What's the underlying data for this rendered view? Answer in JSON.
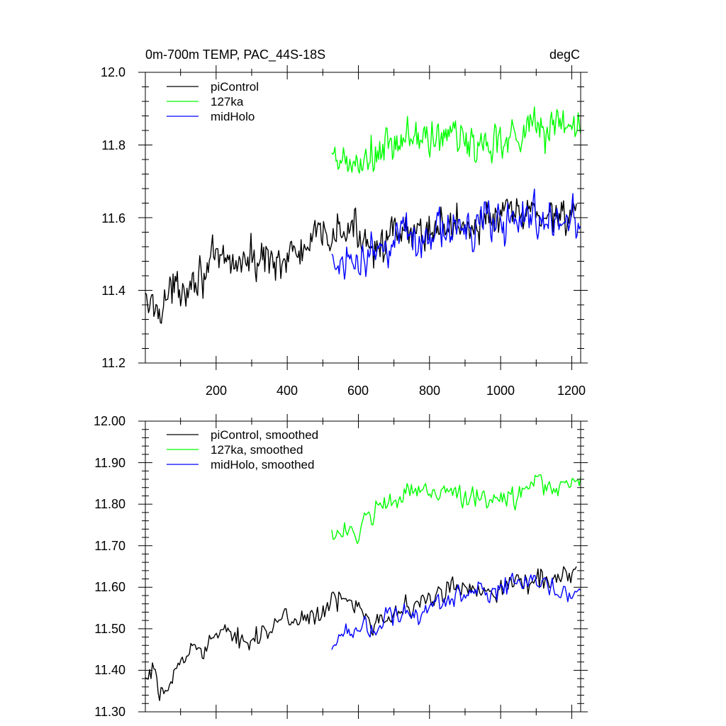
{
  "chart_data": [
    {
      "type": "line",
      "title": "0m-700m TEMP, PAC_44S-18S",
      "units": "degC",
      "xlabel": "",
      "ylabel": "",
      "xlim": [
        1,
        1225
      ],
      "ylim": [
        11.2,
        12.0
      ],
      "x_ticks": [
        200,
        400,
        600,
        800,
        1000,
        1200
      ],
      "x_tick_labels": [
        "200",
        "400",
        "600",
        "800",
        "1000",
        "1200"
      ],
      "y_ticks": [
        11.2,
        11.4,
        11.6,
        11.8,
        12.0
      ],
      "y_tick_labels": [
        "11.2",
        "11.4",
        "11.6",
        "11.8",
        "12.0"
      ],
      "legend_position": "top-left",
      "series": [
        {
          "name": "piControl",
          "color": "#000000",
          "x": [
            1,
            30,
            60,
            100,
            150,
            200,
            250,
            300,
            350,
            400,
            450,
            500,
            550,
            600,
            650,
            700,
            750,
            800,
            850,
            900,
            950,
            1000,
            1050,
            1100,
            1150,
            1200,
            1215
          ],
          "values": [
            11.36,
            11.35,
            11.38,
            11.41,
            11.45,
            11.47,
            11.48,
            11.48,
            11.49,
            11.49,
            11.51,
            11.55,
            11.56,
            11.56,
            11.53,
            11.54,
            11.55,
            11.57,
            11.58,
            11.58,
            11.59,
            11.6,
            11.61,
            11.61,
            11.61,
            11.62,
            11.62
          ],
          "noise": 0.032
        },
        {
          "name": "127ka",
          "color": "#00ff00",
          "x": [
            525,
            550,
            600,
            650,
            700,
            750,
            800,
            850,
            900,
            950,
            1000,
            1050,
            1100,
            1150,
            1200,
            1225
          ],
          "values": [
            11.74,
            11.75,
            11.74,
            11.77,
            11.79,
            11.83,
            11.81,
            11.83,
            11.81,
            11.8,
            11.82,
            11.84,
            11.85,
            11.85,
            11.86,
            11.87
          ],
          "noise": 0.035
        },
        {
          "name": "midHolo",
          "color": "#0000ff",
          "x": [
            525,
            550,
            600,
            650,
            700,
            750,
            800,
            850,
            900,
            950,
            1000,
            1050,
            1100,
            1150,
            1200,
            1225
          ],
          "values": [
            11.46,
            11.49,
            11.5,
            11.51,
            11.53,
            11.54,
            11.55,
            11.56,
            11.58,
            11.59,
            11.59,
            11.6,
            11.6,
            11.59,
            11.58,
            11.59
          ],
          "noise": 0.034
        }
      ]
    },
    {
      "type": "line",
      "title": "",
      "xlabel": "",
      "ylabel": "",
      "xlim": [
        1,
        1225
      ],
      "ylim": [
        11.3,
        12.0
      ],
      "x_ticks": [
        200,
        400,
        600,
        800,
        1000,
        1200
      ],
      "x_tick_labels": [],
      "y_ticks": [
        11.3,
        11.4,
        11.5,
        11.6,
        11.7,
        11.8,
        11.9,
        12.0
      ],
      "y_tick_labels": [
        "11.30",
        "11.40",
        "11.50",
        "11.60",
        "11.70",
        "11.80",
        "11.90",
        "12.00"
      ],
      "legend_position": "top-left",
      "series": [
        {
          "name": "piControl, smoothed",
          "color": "#000000",
          "x": [
            1,
            20,
            40,
            60,
            80,
            100,
            130,
            150,
            200,
            250,
            300,
            350,
            400,
            450,
            500,
            550,
            600,
            650,
            700,
            750,
            800,
            850,
            900,
            950,
            1000,
            1050,
            1100,
            1150,
            1200,
            1215
          ],
          "values": [
            11.36,
            11.4,
            11.33,
            11.36,
            11.38,
            11.42,
            11.45,
            11.46,
            11.48,
            11.48,
            11.48,
            11.5,
            11.52,
            11.53,
            11.54,
            11.57,
            11.56,
            11.52,
            11.54,
            11.55,
            11.57,
            11.59,
            11.6,
            11.6,
            11.6,
            11.61,
            11.62,
            11.62,
            11.64,
            11.63
          ],
          "noise": 0.016
        },
        {
          "name": "127ka, smoothed",
          "color": "#00ff00",
          "x": [
            525,
            560,
            600,
            640,
            660,
            700,
            750,
            800,
            850,
            900,
            950,
            1000,
            1050,
            1100,
            1150,
            1200,
            1225
          ],
          "values": [
            11.74,
            11.74,
            11.73,
            11.76,
            11.8,
            11.8,
            11.83,
            11.83,
            11.84,
            11.82,
            11.8,
            11.81,
            11.83,
            11.85,
            11.84,
            11.86,
            11.88
          ],
          "noise": 0.017
        },
        {
          "name": "midHolo, smoothed",
          "color": "#0000ff",
          "x": [
            525,
            540,
            560,
            600,
            650,
            700,
            750,
            800,
            850,
            900,
            950,
            1000,
            1050,
            1100,
            1150,
            1200,
            1225
          ],
          "values": [
            11.45,
            11.47,
            11.5,
            11.51,
            11.51,
            11.53,
            11.54,
            11.55,
            11.56,
            11.58,
            11.59,
            11.6,
            11.6,
            11.61,
            11.6,
            11.58,
            11.6
          ],
          "noise": 0.016
        }
      ]
    }
  ]
}
